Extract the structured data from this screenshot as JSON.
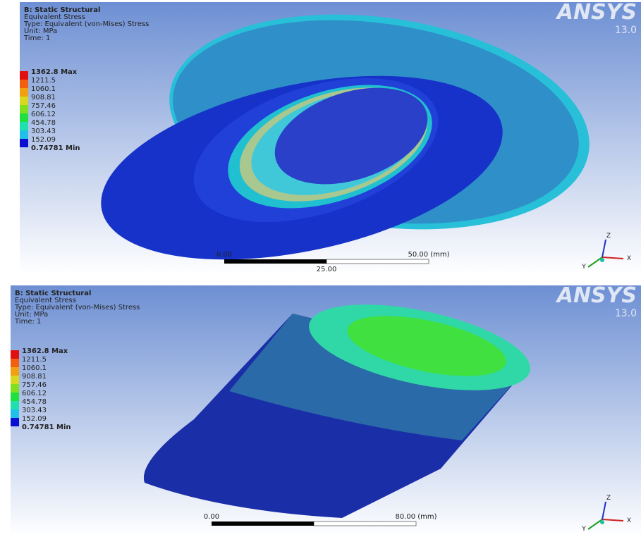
{
  "panels": [
    {
      "header": [
        "B: Static Structural",
        "Equivalent Stress",
        "Type: Equivalent (von-Mises) Stress",
        "Unit: MPa",
        "Time: 1"
      ],
      "brand": "ANSYS",
      "version": "13.0",
      "legend": [
        "1362.8 Max",
        "1211.5",
        "1060.1",
        "908.81",
        "757.46",
        "606.12",
        "454.78",
        "303.43",
        "152.09",
        "0.74781 Min"
      ],
      "scale": {
        "left": "0.00",
        "right": "50.00 (mm)",
        "mid": "25.00"
      },
      "axes": [
        "X",
        "Y",
        "Z"
      ]
    },
    {
      "header": [
        "B: Static Structural",
        "Equivalent Stress",
        "Type: Equivalent (von-Mises) Stress",
        "Unit: MPa",
        "Time: 1"
      ],
      "brand": "ANSYS",
      "version": "13.0",
      "legend": [
        "1362.8 Max",
        "1211.5",
        "1060.1",
        "908.81",
        "757.46",
        "606.12",
        "454.78",
        "303.43",
        "152.09",
        "0.74781 Min"
      ],
      "scale": {
        "left": "0.00",
        "right": "80.00 (mm)"
      },
      "axes": [
        "X",
        "Y",
        "Z"
      ]
    }
  ],
  "legend_colors": [
    "#e01010",
    "#f06010",
    "#f0a010",
    "#d8d820",
    "#80e020",
    "#20e040",
    "#20e0b0",
    "#20c0e8",
    "#1080e8",
    "#0a10d0"
  ]
}
